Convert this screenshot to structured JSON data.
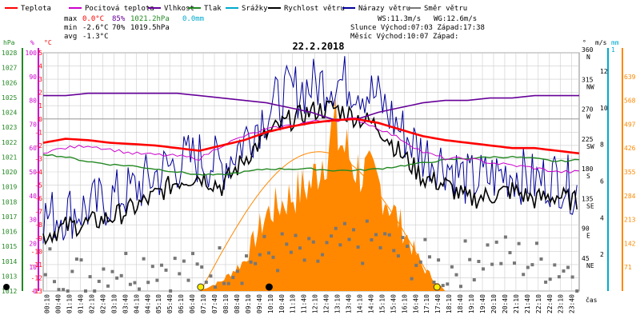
{
  "title": "22.2.2018",
  "legend": [
    {
      "label": "Teplota",
      "color": "#ff0000"
    },
    {
      "label": "Pocitová teplota",
      "color": "#cc00cc"
    },
    {
      "label": "Vlhkost",
      "color": "#660099"
    },
    {
      "label": "Tlak",
      "color": "#228822"
    },
    {
      "label": "Srážky",
      "color": "#00aacc"
    },
    {
      "label": "Rychlost větru",
      "color": "#000000"
    },
    {
      "label": "Nárazy větru",
      "color": "#000099"
    },
    {
      "label": "Směr větru",
      "color": "#777777"
    }
  ],
  "stats": {
    "max_label": "max",
    "max_temp": "0.0°C",
    "max_hum": "85%",
    "max_press": "1021.2hPa",
    "max_rain": "0.0mm",
    "min_label": "min",
    "min_temp": "-2.6°C",
    "min_hum": "70%",
    "min_press": "1019.5hPa",
    "avg_label": "avg",
    "avg_temp": "-1.3°C",
    "ws": "WS:11.3m/s",
    "wg": "WG:12.6m/s",
    "sun": "Slunce Východ:07:03  Západ:17:38",
    "moon": "Měsíc  Východ:10:07  Západ:"
  },
  "colors": {
    "temp": "#ff0000",
    "feels": "#cc00cc",
    "hum": "#660099",
    "press": "#228822",
    "rain": "#00aacc",
    "wind": "#000000",
    "gust": "#000099",
    "dir": "#777777",
    "solar": "#ff8800",
    "sun_arc": "#ff8800",
    "grid": "#cccccc"
  },
  "axes": {
    "hpa_title": "hPa",
    "pct_title": "%",
    "degc_title": "°C",
    "deg_title": "°",
    "ms_title": "m/s",
    "mm_title": "mm",
    "time_title": "čas",
    "hpa_ticks": [
      "1028",
      "1027",
      "1026",
      "1025",
      "1024",
      "1023",
      "1022",
      "1021",
      "1020",
      "1019",
      "1018",
      "1017",
      "1016",
      "1015",
      "1014",
      "1013",
      "1012"
    ],
    "pct_ticks": [
      "100",
      "90",
      "80",
      "70",
      "60",
      "50",
      "40",
      "30",
      "20",
      "10",
      "0"
    ],
    "degc_ticks": [
      "5",
      "4",
      "3",
      "2",
      "1",
      "0",
      "-1",
      "-2",
      "-3",
      "-4",
      "-5",
      "-6",
      "-7",
      "-8",
      "-9",
      "-10",
      "-11",
      "-12",
      "-13"
    ],
    "dir_ticks": [
      {
        "deg": "360",
        "card": "N"
      },
      {
        "deg": "315",
        "card": "NW"
      },
      {
        "deg": "270",
        "card": "W"
      },
      {
        "deg": "225",
        "card": "SW"
      },
      {
        "deg": "180",
        "card": "S"
      },
      {
        "deg": "135",
        "card": "SE"
      },
      {
        "deg": "90",
        "card": "E"
      },
      {
        "deg": "45",
        "card": "NE"
      }
    ],
    "ms_ticks": [
      "12",
      "10",
      "8",
      "6",
      "4",
      "2"
    ],
    "mm_ticks": [
      "1"
    ],
    "solar_ticks": [
      "639",
      "568",
      "497",
      "426",
      "355",
      "284",
      "213",
      "142",
      "71"
    ],
    "time_ticks": [
      "00:10",
      "00:40",
      "01:10",
      "01:40",
      "02:10",
      "02:40",
      "03:10",
      "03:40",
      "04:10",
      "04:40",
      "05:10",
      "05:40",
      "06:10",
      "06:40",
      "07:10",
      "07:40",
      "08:10",
      "08:40",
      "09:10",
      "09:40",
      "10:10",
      "10:40",
      "11:10",
      "11:40",
      "12:10",
      "12:40",
      "13:10",
      "13:40",
      "14:10",
      "14:40",
      "15:10",
      "15:40",
      "16:10",
      "16:40",
      "17:10",
      "17:40",
      "18:10",
      "18:40",
      "19:10",
      "19:40",
      "20:10",
      "20:40",
      "21:10",
      "21:40",
      "22:10",
      "22:40",
      "23:10",
      "23:40"
    ]
  },
  "chart_data": {
    "type": "line",
    "title": "22.2.2018",
    "xlabel": "čas",
    "x_hours": [
      0,
      1,
      2,
      3,
      4,
      5,
      6,
      7,
      8,
      9,
      10,
      11,
      12,
      13,
      14,
      15,
      16,
      17,
      18,
      19,
      20,
      21,
      22,
      23,
      24
    ],
    "series": [
      {
        "name": "Teplota",
        "unit": "°C",
        "values": [
          -1.8,
          -1.5,
          -1.6,
          -1.8,
          -1.9,
          -2.0,
          -2.2,
          -2.4,
          -2.0,
          -1.6,
          -1.0,
          -0.6,
          -0.3,
          -0.1,
          0.0,
          -0.3,
          -0.8,
          -1.3,
          -1.6,
          -1.8,
          -2.0,
          -2.2,
          -2.2,
          -2.4,
          -2.6
        ]
      },
      {
        "name": "Pocitová teplota",
        "unit": "°C",
        "values": [
          -2.5,
          -2.2,
          -2.0,
          -2.3,
          -2.6,
          -2.7,
          -2.8,
          -3.0,
          -2.0,
          -1.3,
          -0.8,
          -0.5,
          -0.2,
          -0.1,
          0.0,
          -0.7,
          -1.5,
          -2.5,
          -3.0,
          -3.0,
          -3.3,
          -3.5,
          -3.7,
          -4.0,
          -4.0
        ]
      },
      {
        "name": "Vlhkost",
        "unit": "%",
        "values": [
          82,
          82,
          83,
          83,
          83,
          83,
          83,
          82,
          81,
          80,
          79,
          77,
          75,
          72,
          72,
          75,
          77,
          79,
          80,
          80,
          81,
          81,
          82,
          82,
          82
        ]
      },
      {
        "name": "Tlak",
        "unit": "hPa",
        "values": [
          1021.2,
          1021.0,
          1020.7,
          1020.5,
          1020.4,
          1020.2,
          1020.0,
          1019.8,
          1019.8,
          1020.0,
          1020.2,
          1020.2,
          1020.2,
          1020.1,
          1020.1,
          1020.2,
          1020.4,
          1020.6,
          1020.8,
          1020.9,
          1021.0,
          1021.0,
          1020.9,
          1020.7,
          1020.8
        ]
      },
      {
        "name": "Rychlost větru",
        "unit": "m/s",
        "values": [
          3.0,
          3.5,
          3.7,
          4.0,
          4.5,
          5.2,
          6.0,
          6.3,
          5.7,
          7.2,
          8.5,
          9.3,
          9.8,
          10.0,
          9.5,
          9.0,
          7.5,
          6.2,
          5.8,
          5.0,
          5.2,
          5.5,
          5.0,
          5.2,
          4.8
        ]
      },
      {
        "name": "Nárazy větru",
        "unit": "m/s",
        "values": [
          4.0,
          4.3,
          4.5,
          5.0,
          5.5,
          6.3,
          7.0,
          7.3,
          6.8,
          8.3,
          9.8,
          10.8,
          11.2,
          11.5,
          11.3,
          10.5,
          8.8,
          7.5,
          7.0,
          6.0,
          6.2,
          6.5,
          6.0,
          6.2,
          5.5
        ]
      },
      {
        "name": "Směr větru",
        "unit": "°",
        "values": [
          45,
          30,
          20,
          40,
          35,
          45,
          30,
          25,
          40,
          45,
          55,
          60,
          45,
          65,
          70,
          75,
          55,
          45,
          30,
          45,
          60,
          50,
          45,
          40,
          30
        ]
      },
      {
        "name": "Sluneční záření",
        "unit": "W/m²",
        "values": [
          0,
          0,
          0,
          0,
          0,
          0,
          0,
          0,
          30,
          90,
          230,
          280,
          320,
          480,
          370,
          320,
          200,
          70,
          0,
          0,
          0,
          0,
          0,
          0,
          0
        ]
      }
    ],
    "ylim": {
      "temp": [
        -13,
        5
      ],
      "hum": [
        0,
        100
      ],
      "press": [
        1012,
        1028
      ],
      "wind": [
        0,
        13
      ],
      "dir": [
        0,
        360
      ],
      "solar": [
        0,
        710
      ]
    },
    "markers": {
      "sunrise": "07:03",
      "sunset": "17:38",
      "moonrise": "10:07"
    },
    "legend_position": "top",
    "grid": true
  }
}
